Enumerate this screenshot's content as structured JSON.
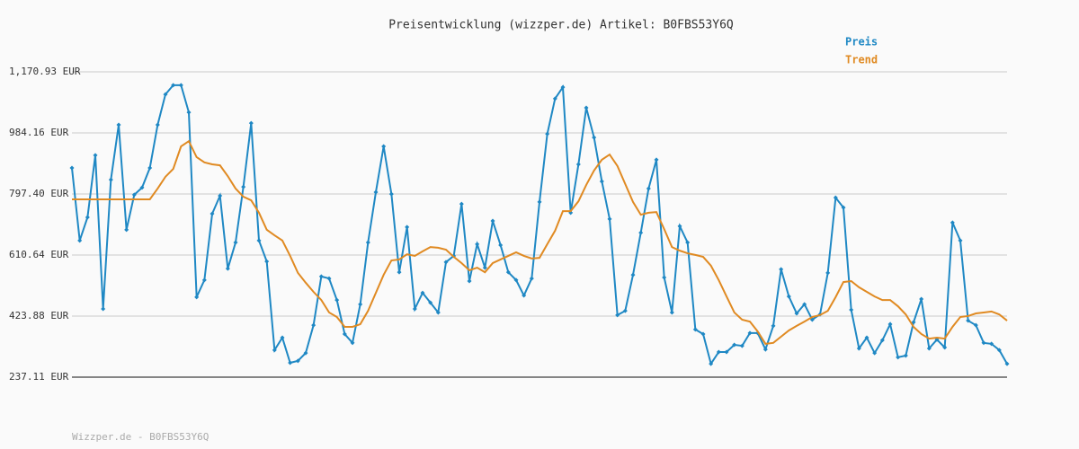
{
  "chart_data": {
    "type": "line",
    "title": "Preisentwicklung (wizzper.de) Artikel: B0FBS53Y6Q",
    "footer": "Wizzper.de - B0FBS53Y6Q",
    "ylim": [
      237.11,
      1170.93
    ],
    "yticks": [
      {
        "value": 237.11,
        "label": "237.11 EUR"
      },
      {
        "value": 423.88,
        "label": "423.88 EUR"
      },
      {
        "value": 610.64,
        "label": "610.64 EUR"
      },
      {
        "value": 797.4,
        "label": "797.40 EUR"
      },
      {
        "value": 984.16,
        "label": "984.16 EUR"
      },
      {
        "value": 1170.93,
        "label": "1,170.93 EUR"
      }
    ],
    "grid": true,
    "legend": "top-right",
    "series": [
      {
        "name": "Preis",
        "color": "#1f88c4",
        "markers": true,
        "values": [
          877,
          655,
          726,
          916,
          446,
          841,
          1009,
          688,
          795,
          817,
          877,
          1009,
          1102,
          1130,
          1130,
          1047,
          482,
          534,
          737,
          792,
          569,
          649,
          819,
          1014,
          655,
          591,
          320,
          358,
          281,
          287,
          311,
          396,
          545,
          539,
          473,
          369,
          342,
          460,
          649,
          803,
          943,
          797,
          558,
          696,
          446,
          495,
          465,
          435,
          589,
          608,
          767,
          531,
          644,
          572,
          715,
          641,
          558,
          534,
          487,
          539,
          773,
          981,
          1089,
          1124,
          740,
          888,
          1061,
          970,
          836,
          721,
          427,
          440,
          550,
          679,
          814,
          902,
          542,
          435,
          699,
          649,
          383,
          369,
          278,
          314,
          314,
          336,
          333,
          372,
          372,
          322,
          394,
          567,
          484,
          432,
          460,
          413,
          429,
          556,
          786,
          756,
          443,
          325,
          358,
          311,
          350,
          399,
          298,
          303,
          405,
          476,
          325,
          352,
          328,
          710,
          655,
          410,
          396,
          342,
          339,
          320,
          278
        ]
      },
      {
        "name": "Trend",
        "color": "#e08a22",
        "markers": false,
        "values": [
          781,
          781,
          781,
          781,
          781,
          781,
          781,
          781,
          781,
          781,
          781,
          814,
          850,
          874,
          943,
          959,
          910,
          894,
          888,
          885,
          852,
          814,
          789,
          778,
          740,
          688,
          671,
          655,
          608,
          556,
          526,
          498,
          473,
          435,
          421,
          391,
          391,
          399,
          440,
          495,
          550,
          594,
          597,
          613,
          608,
          622,
          635,
          633,
          627,
          605,
          586,
          564,
          572,
          558,
          586,
          597,
          608,
          619,
          608,
          600,
          602,
          644,
          685,
          745,
          745,
          775,
          825,
          869,
          902,
          918,
          883,
          828,
          773,
          734,
          740,
          742,
          690,
          635,
          624,
          616,
          611,
          605,
          578,
          534,
          484,
          435,
          413,
          407,
          377,
          339,
          342,
          361,
          380,
          394,
          407,
          421,
          427,
          440,
          482,
          528,
          531,
          512,
          498,
          484,
          473,
          473,
          454,
          429,
          391,
          369,
          355,
          358,
          355,
          391,
          421,
          424,
          432,
          435,
          438,
          429,
          410
        ]
      }
    ]
  }
}
